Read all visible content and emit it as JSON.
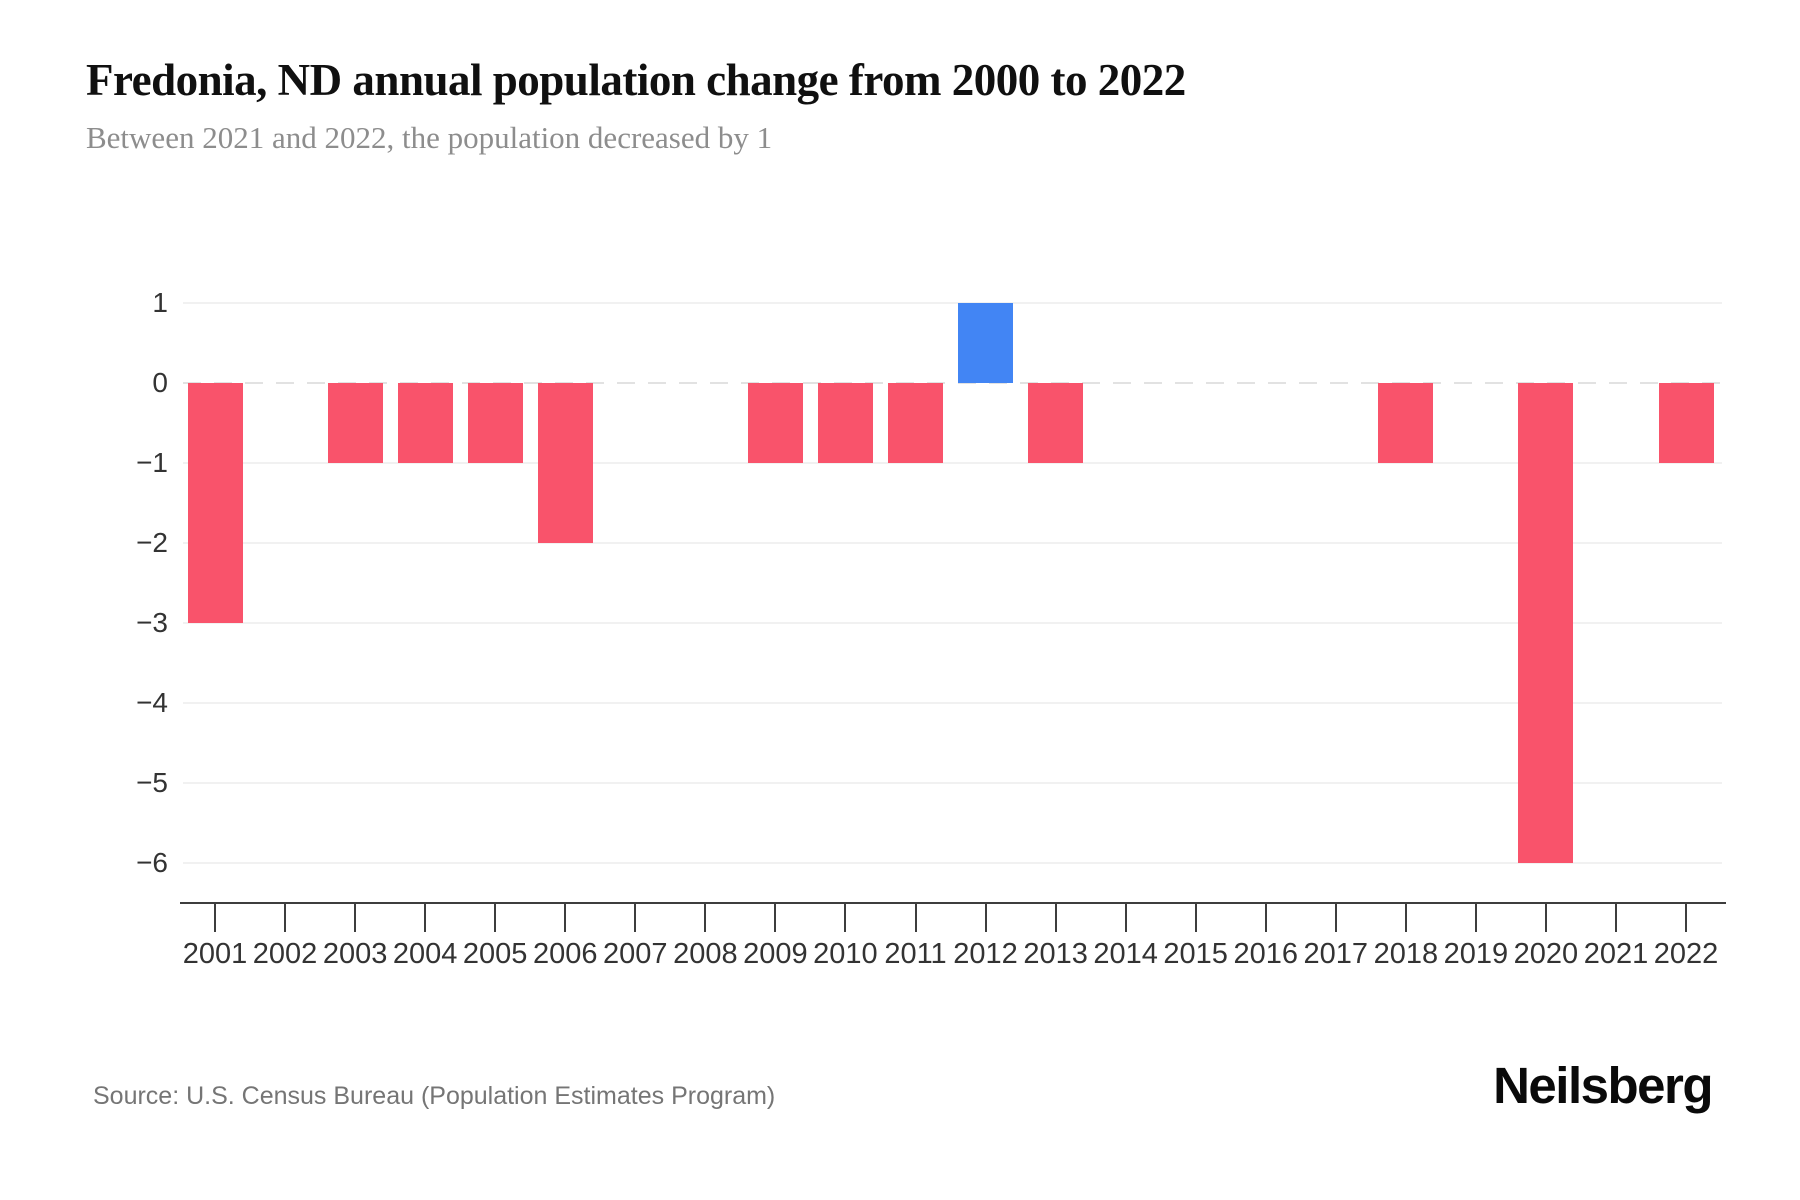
{
  "header": {
    "title": "Fredonia, ND annual population change from 2000 to 2022",
    "subtitle": "Between 2021 and 2022, the population decreased by 1"
  },
  "footer": {
    "source": "Source: U.S. Census Bureau (Population Estimates Program)",
    "brand": "Neilsberg"
  },
  "chart_data": {
    "type": "bar",
    "title": "Fredonia, ND annual population change from 2000 to 2022",
    "subtitle": "Between 2021 and 2022, the population decreased by 1",
    "categories": [
      "2001",
      "2002",
      "2003",
      "2004",
      "2005",
      "2006",
      "2007",
      "2008",
      "2009",
      "2010",
      "2011",
      "2012",
      "2013",
      "2014",
      "2015",
      "2016",
      "2017",
      "2018",
      "2019",
      "2020",
      "2021",
      "2022"
    ],
    "values": [
      -3,
      0,
      -1,
      -1,
      -1,
      -2,
      0,
      0,
      -1,
      -1,
      -1,
      1,
      -1,
      0,
      0,
      0,
      0,
      -1,
      0,
      -6,
      0,
      -1
    ],
    "xlabel": "",
    "ylabel": "",
    "ylim": [
      -6,
      1
    ],
    "yticks": [
      1,
      0,
      -1,
      -2,
      -3,
      -4,
      -5,
      -6
    ],
    "grid": true,
    "legend_position": "none",
    "colors": {
      "positive_bar": "#4285F4",
      "negative_bar": "#F9536B",
      "gridline": "#f1f1f1",
      "zero_line": "#e2e2e2",
      "axis": "#3d3d3d"
    }
  }
}
